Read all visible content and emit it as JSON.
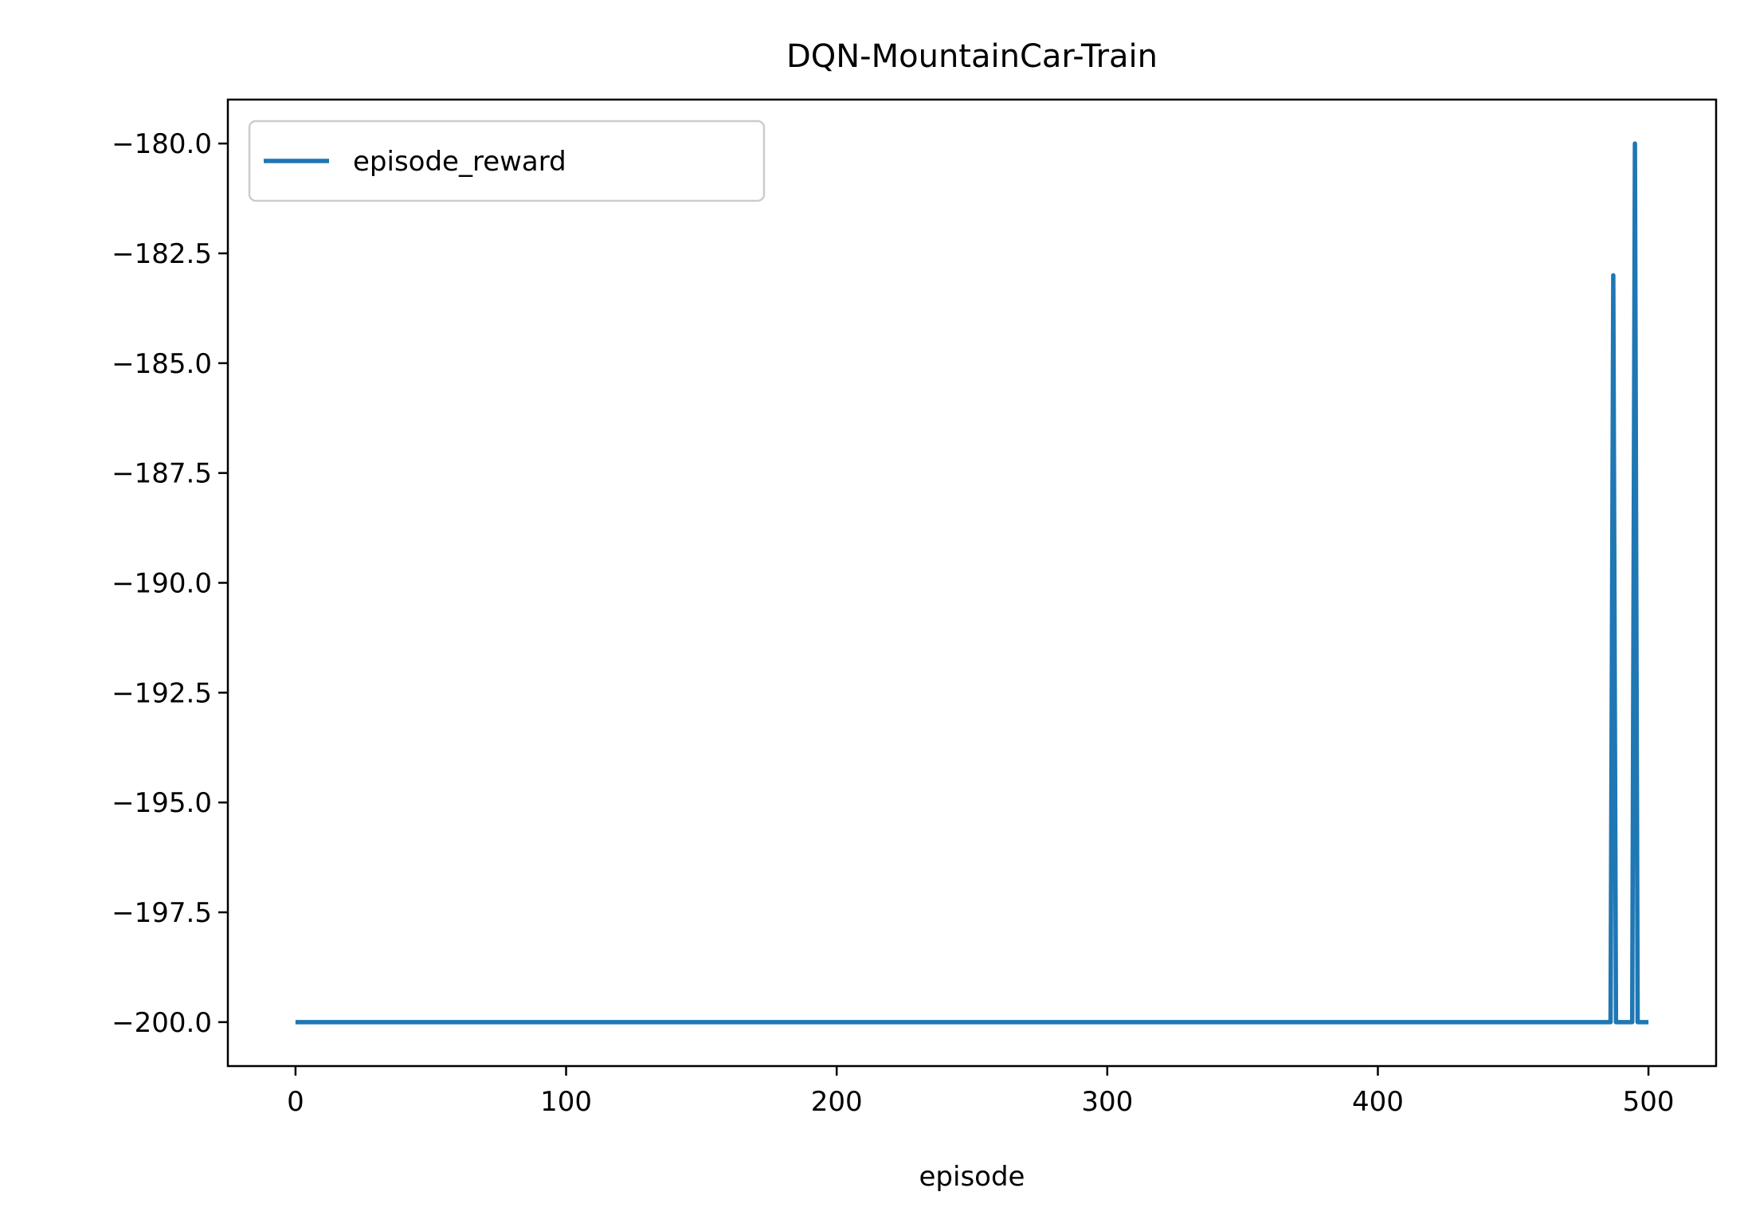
{
  "chart_data": {
    "type": "line",
    "title": "DQN-MountainCar-Train",
    "xlabel": "episode",
    "ylabel": "",
    "xlim": [
      -25,
      525
    ],
    "ylim": [
      -201,
      -179
    ],
    "xticks": [
      0,
      100,
      200,
      300,
      400,
      500
    ],
    "xtick_labels": [
      "0",
      "100",
      "200",
      "300",
      "400",
      "500"
    ],
    "yticks": [
      -200.0,
      -197.5,
      -195.0,
      -192.5,
      -190.0,
      -187.5,
      -185.0,
      -182.5,
      -180.0
    ],
    "ytick_labels": [
      "−200.0",
      "−197.5",
      "−195.0",
      "−192.5",
      "−190.0",
      "−187.5",
      "−185.0",
      "−182.5",
      "−180.0"
    ],
    "grid": false,
    "legend": {
      "position": "top-left"
    },
    "series": [
      {
        "name": "episode_reward",
        "color": "#1f77b4",
        "x": [
          0,
          485,
          486,
          487,
          488,
          493,
          494,
          495,
          496,
          500
        ],
        "y": [
          -200,
          -200,
          -200,
          -183,
          -200,
          -200,
          -200,
          -180,
          -200,
          -200
        ]
      }
    ]
  }
}
